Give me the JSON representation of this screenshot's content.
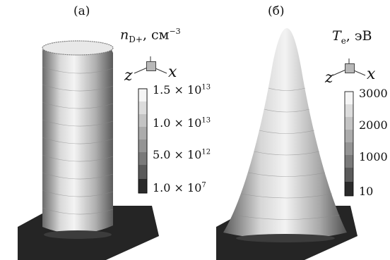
{
  "panel_a": {
    "label": "(а)",
    "quantity": {
      "symbol": "n",
      "subscript": "D+",
      "unit": ", см",
      "unit_power": "−3"
    },
    "axes": {
      "z": "z",
      "x": "x"
    },
    "colorbar_ticks": [
      {
        "mantissa": "1.5 × 10",
        "exp": "13"
      },
      {
        "mantissa": "1.0 × 10",
        "exp": "13"
      },
      {
        "mantissa": "5.0 × 10",
        "exp": "12"
      },
      {
        "mantissa": "1.0 × 10",
        "exp": "7"
      }
    ]
  },
  "panel_b": {
    "label": "(б)",
    "quantity": {
      "symbol": "T",
      "subscript": "e",
      "unit": ", эВ"
    },
    "axes": {
      "z": "z",
      "x": "x"
    },
    "colorbar_ticks": [
      "3000",
      "2000",
      "1000",
      "10"
    ]
  },
  "colors": {
    "surface_light": "#f2f2f2",
    "surface_dark": "#3a3a3a",
    "base": "#222222"
  }
}
